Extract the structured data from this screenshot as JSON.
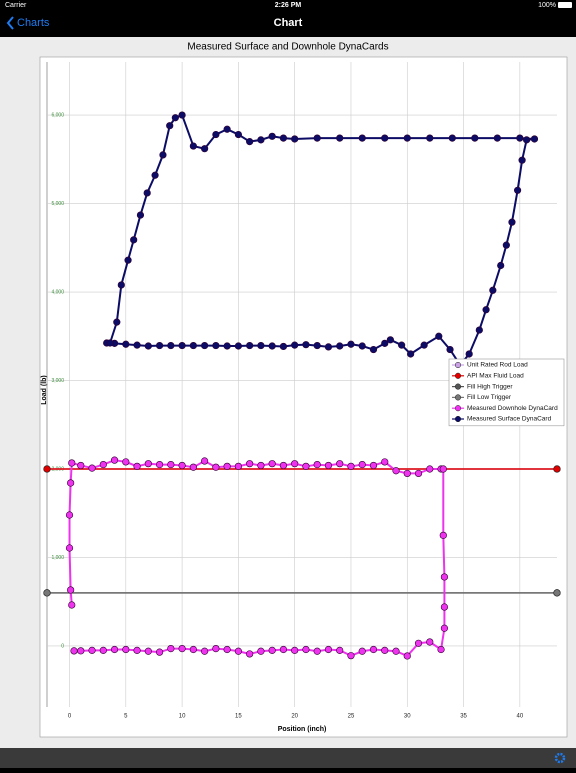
{
  "status_bar": {
    "carrier": "Carrier",
    "time": "2:26 PM",
    "battery": "100%"
  },
  "nav_bar": {
    "back": "Charts",
    "title": "Chart"
  },
  "chart_data": {
    "type": "line",
    "title": "Measured Surface and Downhole DynaCards",
    "x_label": "Position (inch)",
    "y_label": "Load (lb)",
    "xlim": [
      -2,
      43.3
    ],
    "ylim": [
      -690,
      6600
    ],
    "xticks": [
      0,
      5,
      10,
      15,
      20,
      25,
      30,
      35,
      40
    ],
    "yticks": [
      0,
      {
        "value": 1000,
        "label": "1,000"
      },
      {
        "value": 2000,
        "label": "2,000"
      },
      {
        "value": 3000,
        "label": "3,000"
      },
      {
        "value": 4000,
        "label": "4,000"
      },
      {
        "value": 5000,
        "label": "5,000"
      },
      {
        "value": 6000,
        "label": "6,000"
      }
    ],
    "grid": true,
    "legend": "right",
    "series": [
      {
        "name": "Unit Rated Rod Load",
        "color": "#c9a3e6",
        "x": [
          -2,
          43.3
        ],
        "values": [
          2000,
          2000
        ]
      },
      {
        "name": "API Max Fluid Load",
        "color": "#e00000",
        "x": [
          -2,
          43.3
        ],
        "values": [
          2000,
          2000
        ]
      },
      {
        "name": "Fill High Trigger",
        "color": "#555555",
        "x": [
          -2,
          43.3
        ],
        "values": [
          600,
          600
        ]
      },
      {
        "name": "Fill Low Trigger",
        "color": "#777777",
        "x": [
          -2,
          43.3
        ],
        "values": [
          600,
          600
        ]
      },
      {
        "name": "Measured Downhole DynaCard",
        "color": "#ee33ee",
        "x": [
          0.2,
          0.1,
          0,
          0,
          0.1,
          0.2,
          1,
          2,
          3,
          4,
          5,
          6,
          7,
          8,
          9,
          10,
          11,
          12,
          13,
          14,
          15,
          16,
          17,
          18,
          19,
          20,
          21,
          22,
          23,
          24,
          25,
          26,
          27,
          28,
          29,
          30,
          31,
          32,
          33,
          33.2,
          33.2,
          33.3,
          33.3,
          33.3,
          33,
          32,
          31,
          30,
          29,
          28,
          27,
          26,
          25,
          24,
          23,
          22,
          21,
          20,
          19,
          18,
          17,
          16,
          15,
          14,
          13,
          12,
          11,
          10,
          9,
          8,
          7,
          6,
          5,
          4,
          3,
          2,
          1,
          0.4
        ],
        "values": [
          463,
          633,
          1107,
          1480,
          1842,
          2068,
          2040,
          2010,
          2050,
          2100,
          2080,
          2030,
          2060,
          2050,
          2050,
          2040,
          2020,
          2090,
          2020,
          2030,
          2030,
          2060,
          2040,
          2060,
          2040,
          2060,
          2030,
          2050,
          2040,
          2060,
          2030,
          2050,
          2040,
          2080,
          1980,
          1950,
          1950,
          2000,
          2000,
          2000,
          1250,
          780,
          440,
          200,
          -40,
          45,
          30,
          -113,
          -60,
          -50,
          -40,
          -60,
          -110,
          -50,
          -40,
          -60,
          -40,
          -50,
          -40,
          -50,
          -60,
          -90,
          -60,
          -40,
          -30,
          -60,
          -40,
          -30,
          -30,
          -70,
          -60,
          -50,
          -40,
          -40,
          -50,
          -50,
          -55,
          -56
        ]
      },
      {
        "name": "Measured Surface DynaCard",
        "color": "#0c0c66",
        "x": [
          3.3,
          4,
          5,
          6,
          7,
          8,
          9,
          10,
          11,
          12,
          13,
          14,
          15,
          16,
          17,
          18,
          19,
          20,
          21,
          22,
          23,
          24,
          25,
          26,
          27,
          28,
          28.5,
          29.5,
          30.3,
          31.5,
          32.8,
          33.8,
          34.7,
          35.5,
          36.4,
          37,
          37.6,
          38.3,
          38.8,
          39.3,
          39.8,
          40.2,
          40.6,
          41.3,
          40,
          38,
          36,
          34,
          32,
          30,
          28,
          26,
          24,
          22,
          20,
          19,
          18,
          17,
          16,
          15,
          14,
          13,
          12,
          11,
          10,
          9.4,
          8.9,
          8.3,
          7.6,
          6.9,
          6.3,
          5.7,
          5.2,
          4.6,
          4.2,
          3.6
        ],
        "values": [
          3424,
          3420,
          3410,
          3400,
          3390,
          3395,
          3395,
          3395,
          3395,
          3395,
          3395,
          3390,
          3390,
          3395,
          3395,
          3390,
          3385,
          3400,
          3405,
          3395,
          3380,
          3390,
          3410,
          3390,
          3350,
          3420,
          3460,
          3400,
          3300,
          3400,
          3500,
          3350,
          3175,
          3300,
          3570,
          3800,
          4020,
          4300,
          4530,
          4790,
          5150,
          5490,
          5720,
          5730,
          5740,
          5740,
          5740,
          5740,
          5740,
          5740,
          5740,
          5740,
          5740,
          5740,
          5730,
          5740,
          5760,
          5720,
          5700,
          5780,
          5840,
          5780,
          5620,
          5650,
          6000,
          5970,
          5880,
          5550,
          5320,
          5120,
          4870,
          4590,
          4360,
          4080,
          3660,
          3424
        ]
      }
    ]
  }
}
